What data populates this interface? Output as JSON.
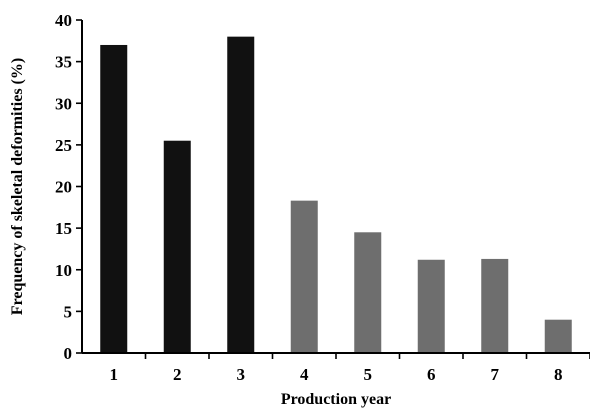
{
  "chart_data": {
    "type": "bar",
    "title": "",
    "xlabel": "Production year",
    "ylabel": "Frequency of skeletal deformities (%)",
    "categories": [
      "1",
      "2",
      "3",
      "4",
      "5",
      "6",
      "7",
      "8"
    ],
    "values": [
      37,
      25.5,
      38,
      18.3,
      14.5,
      11.2,
      11.3,
      4
    ],
    "bar_colors": [
      "#111111",
      "#111111",
      "#111111",
      "#6e6e6e",
      "#6e6e6e",
      "#6e6e6e",
      "#6e6e6e",
      "#6e6e6e"
    ],
    "ylim": [
      0,
      40
    ],
    "yticks": [
      "0",
      "5",
      "10",
      "15",
      "20",
      "25",
      "30",
      "35",
      "40"
    ],
    "grid": false,
    "legend": "none"
  }
}
